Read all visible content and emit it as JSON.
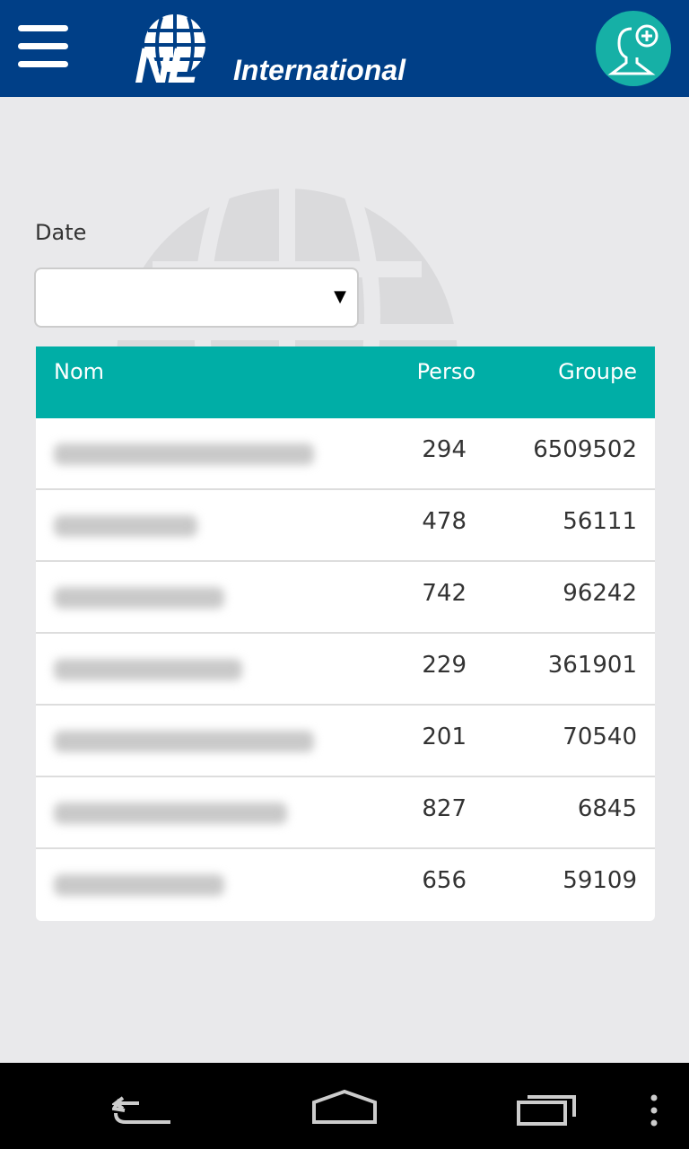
{
  "header": {
    "brand_mark": "NL",
    "brand_text": "International",
    "menu_icon": "hamburger-icon",
    "add_icon": "add-user-icon"
  },
  "form": {
    "date_label": "Date",
    "date_value": "",
    "arrow": "▼"
  },
  "table": {
    "columns": [
      "Nom",
      "Perso",
      "Groupe"
    ],
    "rows": [
      {
        "perso": "294",
        "groupe": "6509502"
      },
      {
        "perso": "478",
        "groupe": "56111"
      },
      {
        "perso": "742",
        "groupe": "96242"
      },
      {
        "perso": "229",
        "groupe": "361901"
      },
      {
        "perso": "201",
        "groupe": "70540"
      },
      {
        "perso": "827",
        "groupe": "6845"
      },
      {
        "perso": "656",
        "groupe": "59109"
      }
    ]
  },
  "colors": {
    "header": "#003f87",
    "accent": "#00aea6"
  }
}
